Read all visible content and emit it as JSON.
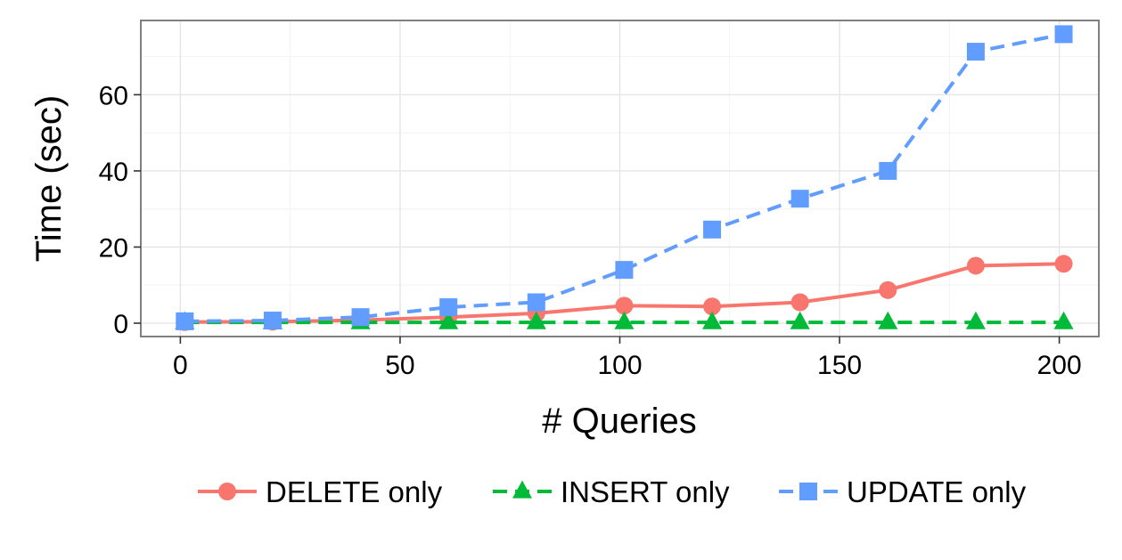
{
  "chart_data": {
    "type": "line",
    "title": "",
    "xlabel": "# Queries",
    "ylabel": "Time (sec)",
    "xlim": [
      -9,
      209
    ],
    "ylim": [
      -3.5,
      79.5
    ],
    "x_ticks": [
      0,
      50,
      100,
      150,
      200
    ],
    "y_ticks": [
      0,
      20,
      40,
      60
    ],
    "x_tick_labels": [
      "0",
      "50",
      "100",
      "150",
      "200"
    ],
    "y_tick_labels": [
      "0",
      "20",
      "40",
      "60"
    ],
    "grid": true,
    "legend_position": "bottom",
    "x": [
      1,
      21,
      41,
      61,
      81,
      101,
      121,
      141,
      161,
      181,
      201
    ],
    "series": [
      {
        "name": "DELETE only",
        "color": "#F8766D",
        "line_style": "solid",
        "marker": "circle",
        "values": [
          0.3,
          0.4,
          0.8,
          1.6,
          2.6,
          4.6,
          4.4,
          5.5,
          8.7,
          15.1,
          15.6
        ]
      },
      {
        "name": "INSERT only",
        "color": "#00BA38",
        "line_style": "dashed",
        "marker": "triangle",
        "values": [
          0.2,
          0.2,
          0.2,
          0.2,
          0.2,
          0.2,
          0.2,
          0.2,
          0.2,
          0.2,
          0.2
        ]
      },
      {
        "name": "UPDATE only",
        "color": "#619CFF",
        "line_style": "dashed",
        "marker": "square",
        "values": [
          0.5,
          0.7,
          1.6,
          4.2,
          5.5,
          14.0,
          24.6,
          32.7,
          40.0,
          71.3,
          75.9
        ]
      }
    ]
  }
}
